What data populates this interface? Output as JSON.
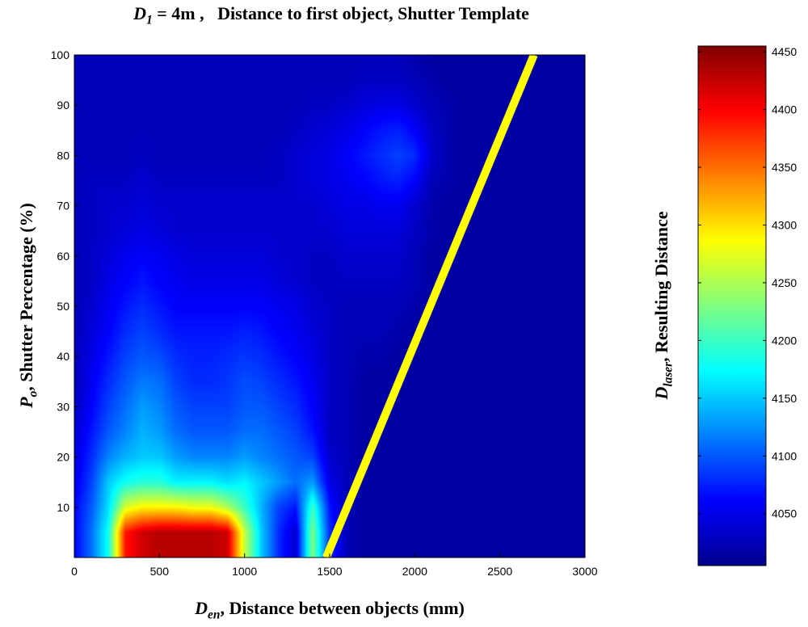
{
  "chart_data": {
    "type": "heatmap",
    "title": {
      "prefix": "D",
      "prefix_sub": "1",
      "value": " = 4m ,",
      "rest": "Distance to first object, Shutter Template"
    },
    "xlabel": {
      "symbol": "D",
      "symbol_sub": "en",
      "text": ", Distance between objects (mm)"
    },
    "ylabel": {
      "symbol": "P",
      "symbol_sub": "o",
      "text": ", Shutter Percentage (%)"
    },
    "colorbar_label": {
      "symbol": "D",
      "symbol_sub": "laser",
      "text": ", Resulting Distance"
    },
    "xlim": [
      0,
      3000
    ],
    "ylim": [
      0,
      100
    ],
    "xticks": [
      0,
      500,
      1000,
      1500,
      2000,
      2500,
      3000
    ],
    "yticks": [
      10,
      20,
      30,
      40,
      50,
      60,
      70,
      80,
      90,
      100
    ],
    "clim": [
      4005,
      4455
    ],
    "colorbar_ticks": [
      4050,
      4100,
      4150,
      4200,
      4250,
      4300,
      4350,
      4400,
      4450
    ],
    "colormap": "jet",
    "x": [
      0,
      100,
      200,
      300,
      400,
      500,
      600,
      700,
      800,
      900,
      1000,
      1100,
      1200,
      1300,
      1400,
      1500,
      1600,
      1700,
      1800,
      1900,
      2000,
      2100,
      2200,
      2300,
      2400,
      2500,
      2600,
      2700,
      2800,
      2900,
      3000
    ],
    "y": [
      0,
      5,
      10,
      15,
      20,
      25,
      30,
      35,
      40,
      45,
      50,
      55,
      60,
      65,
      70,
      75,
      80,
      85,
      90,
      95,
      100
    ],
    "z": [
      [
        4060,
        4110,
        4180,
        4390,
        4420,
        4430,
        4430,
        4430,
        4430,
        4420,
        4260,
        4150,
        4080,
        4040,
        4230,
        4080,
        4030,
        4020,
        4020,
        4020,
        4020,
        4020,
        4020,
        4020,
        4020,
        4020,
        4020,
        4020,
        4020,
        4020,
        4020
      ],
      [
        4060,
        4110,
        4180,
        4390,
        4420,
        4430,
        4430,
        4430,
        4430,
        4420,
        4260,
        4150,
        4080,
        4040,
        4230,
        4080,
        4030,
        4020,
        4020,
        4020,
        4020,
        4020,
        4020,
        4020,
        4020,
        4020,
        4020,
        4020,
        4020,
        4020,
        4020
      ],
      [
        4060,
        4100,
        4160,
        4270,
        4290,
        4290,
        4290,
        4280,
        4280,
        4250,
        4200,
        4140,
        4090,
        4070,
        4200,
        4070,
        4030,
        4020,
        4020,
        4020,
        4020,
        4020,
        4020,
        4020,
        4020,
        4020,
        4020,
        4020,
        4020,
        4020,
        4020
      ],
      [
        4050,
        4090,
        4150,
        4180,
        4190,
        4190,
        4170,
        4170,
        4170,
        4160,
        4170,
        4150,
        4130,
        4110,
        4130,
        4050,
        4030,
        4020,
        4020,
        4020,
        4020,
        4020,
        4020,
        4020,
        4020,
        4020,
        4020,
        4020,
        4020,
        4020,
        4020
      ],
      [
        4045,
        4080,
        4120,
        4140,
        4150,
        4150,
        4130,
        4120,
        4120,
        4120,
        4130,
        4120,
        4110,
        4100,
        4090,
        4040,
        4030,
        4020,
        4020,
        4020,
        4020,
        4020,
        4020,
        4020,
        4020,
        4020,
        4020,
        4020,
        4020,
        4020,
        4020
      ],
      [
        4040,
        4070,
        4100,
        4120,
        4140,
        4130,
        4110,
        4100,
        4100,
        4100,
        4110,
        4110,
        4100,
        4090,
        4070,
        4035,
        4030,
        4020,
        4020,
        4020,
        4020,
        4020,
        4020,
        4020,
        4020,
        4020,
        4020,
        4020,
        4020,
        4020,
        4020
      ],
      [
        4035,
        4060,
        4090,
        4110,
        4130,
        4120,
        4100,
        4090,
        4090,
        4090,
        4100,
        4100,
        4090,
        4080,
        4060,
        4035,
        4030,
        4020,
        4020,
        4020,
        4020,
        4020,
        4020,
        4020,
        4020,
        4020,
        4020,
        4020,
        4020,
        4020,
        4020
      ],
      [
        4030,
        4055,
        4080,
        4100,
        4115,
        4110,
        4090,
        4080,
        4080,
        4085,
        4095,
        4090,
        4080,
        4070,
        4055,
        4035,
        4030,
        4020,
        4020,
        4020,
        4020,
        4020,
        4020,
        4020,
        4020,
        4020,
        4020,
        4020,
        4020,
        4020,
        4020
      ],
      [
        4030,
        4050,
        4070,
        4090,
        4100,
        4095,
        4080,
        4075,
        4075,
        4080,
        4085,
        4080,
        4070,
        4060,
        4050,
        4035,
        4030,
        4025,
        4025,
        4020,
        4020,
        4020,
        4020,
        4020,
        4020,
        4020,
        4020,
        4020,
        4020,
        4020,
        4020
      ],
      [
        4030,
        4045,
        4060,
        4080,
        4090,
        4080,
        4070,
        4070,
        4070,
        4070,
        4075,
        4070,
        4060,
        4055,
        4045,
        4035,
        4030,
        4030,
        4030,
        4025,
        4020,
        4020,
        4020,
        4020,
        4020,
        4020,
        4020,
        4020,
        4020,
        4020,
        4020
      ],
      [
        4030,
        4040,
        4055,
        4070,
        4080,
        4070,
        4060,
        4060,
        4060,
        4060,
        4060,
        4060,
        4055,
        4050,
        4040,
        4035,
        4030,
        4030,
        4030,
        4030,
        4025,
        4020,
        4020,
        4020,
        4020,
        4020,
        4020,
        4020,
        4020,
        4020,
        4020
      ],
      [
        4030,
        4035,
        4050,
        4060,
        4070,
        4060,
        4055,
        4050,
        4050,
        4050,
        4050,
        4050,
        4045,
        4040,
        4035,
        4035,
        4035,
        4035,
        4035,
        4035,
        4030,
        4020,
        4020,
        4020,
        4020,
        4020,
        4020,
        4020,
        4020,
        4020,
        4020
      ],
      [
        4030,
        4035,
        4045,
        4055,
        4060,
        4055,
        4050,
        4045,
        4045,
        4045,
        4045,
        4045,
        4040,
        4040,
        4035,
        4035,
        4040,
        4040,
        4040,
        4040,
        4030,
        4020,
        4020,
        4020,
        4020,
        4020,
        4020,
        4020,
        4020,
        4020,
        4020
      ],
      [
        4030,
        4035,
        4040,
        4045,
        4050,
        4045,
        4040,
        4040,
        4040,
        4040,
        4040,
        4040,
        4040,
        4040,
        4040,
        4040,
        4045,
        4045,
        4045,
        4045,
        4035,
        4025,
        4020,
        4020,
        4020,
        4020,
        4020,
        4020,
        4020,
        4020,
        4020
      ],
      [
        4030,
        4035,
        4040,
        4040,
        4045,
        4040,
        4040,
        4040,
        4040,
        4040,
        4040,
        4040,
        4040,
        4040,
        4040,
        4045,
        4050,
        4050,
        4055,
        4055,
        4040,
        4025,
        4020,
        4020,
        4020,
        4020,
        4020,
        4020,
        4020,
        4020,
        4020
      ],
      [
        4030,
        4035,
        4035,
        4035,
        4040,
        4035,
        4035,
        4035,
        4035,
        4035,
        4035,
        4035,
        4035,
        4040,
        4045,
        4050,
        4055,
        4060,
        4070,
        4075,
        4060,
        4030,
        4025,
        4020,
        4020,
        4020,
        4020,
        4020,
        4020,
        4020,
        4020
      ],
      [
        4030,
        4030,
        4030,
        4030,
        4035,
        4030,
        4030,
        4030,
        4030,
        4030,
        4030,
        4030,
        4035,
        4040,
        4045,
        4050,
        4060,
        4070,
        4080,
        4090,
        4080,
        4040,
        4025,
        4020,
        4020,
        4020,
        4020,
        4020,
        4020,
        4020,
        4020
      ],
      [
        4030,
        4030,
        4030,
        4030,
        4030,
        4030,
        4030,
        4030,
        4030,
        4030,
        4030,
        4030,
        4030,
        4035,
        4040,
        4045,
        4050,
        4060,
        4070,
        4075,
        4060,
        4035,
        4025,
        4020,
        4020,
        4020,
        4020,
        4020,
        4020,
        4020,
        4020
      ],
      [
        4030,
        4030,
        4030,
        4030,
        4030,
        4030,
        4030,
        4030,
        4030,
        4030,
        4030,
        4030,
        4030,
        4030,
        4035,
        4035,
        4040,
        4045,
        4050,
        4050,
        4040,
        4030,
        4025,
        4020,
        4020,
        4020,
        4020,
        4020,
        4020,
        4020,
        4020
      ],
      [
        4030,
        4030,
        4030,
        4030,
        4030,
        4030,
        4030,
        4030,
        4030,
        4030,
        4030,
        4030,
        4030,
        4030,
        4030,
        4030,
        4030,
        4035,
        4035,
        4035,
        4030,
        4025,
        4020,
        4020,
        4020,
        4020,
        4020,
        4020,
        4020,
        4020,
        4020
      ],
      [
        4030,
        4030,
        4030,
        4030,
        4030,
        4030,
        4030,
        4030,
        4030,
        4030,
        4030,
        4030,
        4030,
        4030,
        4030,
        4030,
        4030,
        4030,
        4030,
        4030,
        4025,
        4020,
        4020,
        4020,
        4020,
        4020,
        4020,
        4020,
        4020,
        4020,
        4020
      ]
    ],
    "overlay_line": {
      "x": [
        1480,
        2700
      ],
      "y": [
        0,
        100
      ],
      "color": "#ffff00"
    }
  }
}
